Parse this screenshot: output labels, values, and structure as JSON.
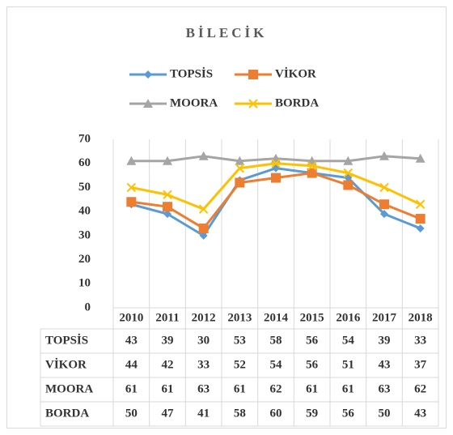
{
  "chart_data": {
    "type": "line",
    "title": "BİLECİK",
    "categories": [
      "2010",
      "2011",
      "2012",
      "2013",
      "2014",
      "2015",
      "2016",
      "2017",
      "2018"
    ],
    "series": [
      {
        "name": "TOPSİS",
        "color": "#5b9bd5",
        "marker": "diamond",
        "values": [
          43,
          39,
          30,
          53,
          58,
          56,
          54,
          39,
          33
        ]
      },
      {
        "name": "VİKOR",
        "color": "#ed7d31",
        "marker": "square",
        "values": [
          44,
          42,
          33,
          52,
          54,
          56,
          51,
          43,
          37
        ]
      },
      {
        "name": "MOORA",
        "color": "#a5a5a5",
        "marker": "triangle",
        "values": [
          61,
          61,
          63,
          61,
          62,
          61,
          61,
          63,
          62
        ]
      },
      {
        "name": "BORDA",
        "color": "#ffc000",
        "marker": "x",
        "values": [
          50,
          47,
          41,
          58,
          60,
          59,
          56,
          50,
          43
        ]
      }
    ],
    "ylim": [
      0,
      70
    ],
    "yticks": [
      0,
      10,
      20,
      30,
      40,
      50,
      60,
      70
    ],
    "data_table": true
  }
}
